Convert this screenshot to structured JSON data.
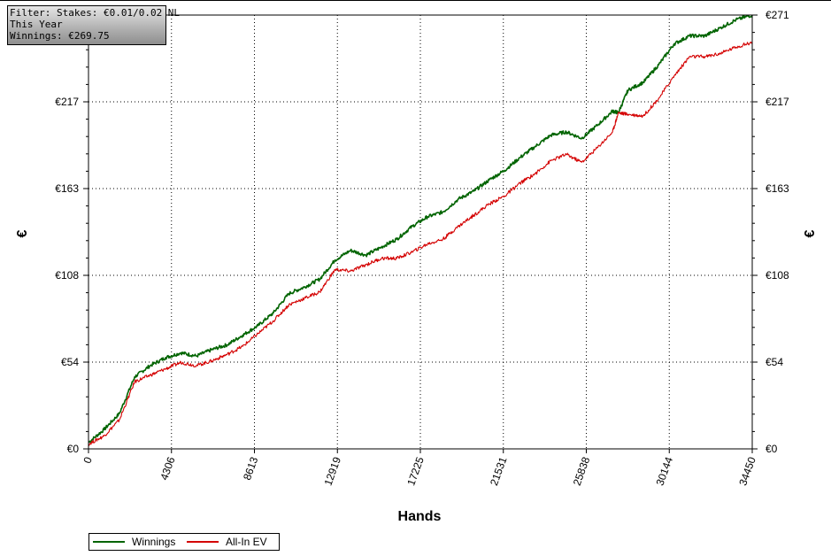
{
  "info": {
    "filter": "Filter: Stakes: €0.01/0.02 NL",
    "period": "This Year",
    "winnings": "Winnings: €269.75"
  },
  "chart_data": {
    "type": "line",
    "xlabel": "Hands",
    "ylabel": "€",
    "xlim": [
      0,
      34450
    ],
    "ylim": [
      0,
      271
    ],
    "x_ticks": [
      "0",
      "4306",
      "8613",
      "12919",
      "17225",
      "21531",
      "25838",
      "30144",
      "34450"
    ],
    "y_ticks": [
      "€0",
      "€54",
      "€108",
      "€163",
      "€217",
      "€271"
    ],
    "grid": true,
    "legend_position": "bottom-left",
    "colors": {
      "winnings": "#006400",
      "all_in_ev": "#d40000"
    },
    "series": [
      {
        "name": "Winnings",
        "x": [
          0,
          800,
          1600,
          2400,
          3200,
          4000,
          4800,
          5600,
          6400,
          7200,
          8000,
          8800,
          9600,
          10400,
          11200,
          12000,
          12800,
          13600,
          14400,
          15200,
          16000,
          16800,
          17600,
          18400,
          19200,
          20000,
          20800,
          21600,
          22400,
          23200,
          24000,
          24800,
          25600,
          26400,
          27200,
          27500,
          28000,
          28800,
          29600,
          30400,
          31200,
          32000,
          32800,
          33600,
          34450
        ],
        "values": [
          4,
          12,
          22,
          45,
          52,
          57,
          60,
          58,
          62,
          65,
          71,
          77,
          85,
          97,
          101,
          106,
          118,
          124,
          121,
          126,
          131,
          139,
          145,
          148,
          156,
          161,
          168,
          174,
          182,
          189,
          196,
          198,
          194,
          202,
          211,
          210,
          224,
          229,
          240,
          253,
          258,
          258,
          263,
          268,
          271
        ]
      },
      {
        "name": "All-In EV",
        "x": [
          0,
          800,
          1600,
          2400,
          3200,
          4000,
          4800,
          5600,
          6400,
          7200,
          8000,
          8800,
          9600,
          10400,
          11200,
          12000,
          12800,
          13600,
          14400,
          15200,
          16000,
          16800,
          17600,
          18400,
          19200,
          20000,
          20800,
          21600,
          22400,
          23200,
          24000,
          24800,
          25600,
          26400,
          27200,
          27500,
          28000,
          28800,
          29600,
          30400,
          31200,
          32000,
          32800,
          33600,
          34450
        ],
        "values": [
          3,
          8,
          18,
          42,
          46,
          50,
          54,
          52,
          55,
          59,
          64,
          72,
          80,
          90,
          94,
          98,
          112,
          111,
          115,
          119,
          119,
          123,
          128,
          131,
          139,
          146,
          153,
          158,
          166,
          172,
          180,
          184,
          179,
          188,
          198,
          210,
          209,
          208,
          219,
          233,
          245,
          245,
          247,
          251,
          254
        ]
      }
    ]
  }
}
